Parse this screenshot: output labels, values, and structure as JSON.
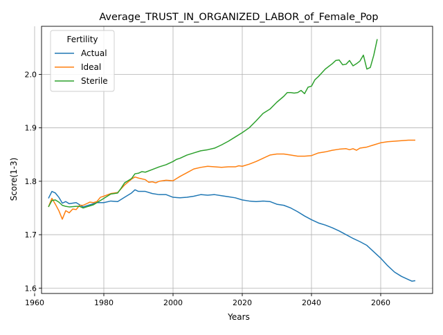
{
  "chart_data": {
    "type": "line",
    "title": "Average_TRUST_IN_ORGANIZED_LABOR_of_Female_Pop",
    "xlabel": "Years",
    "ylabel": "Score(1-3)",
    "xlim": [
      1962,
      2075
    ],
    "ylim": [
      1.59,
      2.09
    ],
    "xticks": [
      1960,
      1980,
      2000,
      2020,
      2040,
      2060
    ],
    "yticks": [
      1.6,
      1.7,
      1.8,
      1.9,
      2.0
    ],
    "ytick_labels": [
      "1.6",
      "1.7",
      "1.8",
      "1.9",
      "2.0"
    ],
    "grid": true,
    "legend": {
      "title": "Fertility",
      "placement": "top-left"
    },
    "series": [
      {
        "name": "Actual",
        "color": "#1f77b4",
        "points": [
          [
            1964,
            1.768
          ],
          [
            1965,
            1.781
          ],
          [
            1966,
            1.778
          ],
          [
            1967,
            1.77
          ],
          [
            1968,
            1.759
          ],
          [
            1969,
            1.762
          ],
          [
            1970,
            1.758
          ],
          [
            1972,
            1.76
          ],
          [
            1974,
            1.752
          ],
          [
            1976,
            1.756
          ],
          [
            1978,
            1.76
          ],
          [
            1980,
            1.76
          ],
          [
            1982,
            1.763
          ],
          [
            1984,
            1.762
          ],
          [
            1986,
            1.77
          ],
          [
            1988,
            1.778
          ],
          [
            1989,
            1.784
          ],
          [
            1990,
            1.781
          ],
          [
            1992,
            1.781
          ],
          [
            1994,
            1.777
          ],
          [
            1996,
            1.775
          ],
          [
            1998,
            1.775
          ],
          [
            2000,
            1.77
          ],
          [
            2002,
            1.769
          ],
          [
            2004,
            1.77
          ],
          [
            2006,
            1.772
          ],
          [
            2008,
            1.775
          ],
          [
            2010,
            1.774
          ],
          [
            2012,
            1.775
          ],
          [
            2014,
            1.773
          ],
          [
            2016,
            1.771
          ],
          [
            2018,
            1.769
          ],
          [
            2020,
            1.765
          ],
          [
            2022,
            1.763
          ],
          [
            2024,
            1.762
          ],
          [
            2026,
            1.763
          ],
          [
            2028,
            1.762
          ],
          [
            2030,
            1.757
          ],
          [
            2032,
            1.755
          ],
          [
            2034,
            1.75
          ],
          [
            2036,
            1.743
          ],
          [
            2038,
            1.735
          ],
          [
            2040,
            1.728
          ],
          [
            2042,
            1.722
          ],
          [
            2044,
            1.718
          ],
          [
            2046,
            1.713
          ],
          [
            2048,
            1.707
          ],
          [
            2050,
            1.7
          ],
          [
            2052,
            1.693
          ],
          [
            2054,
            1.687
          ],
          [
            2056,
            1.68
          ],
          [
            2058,
            1.668
          ],
          [
            2060,
            1.656
          ],
          [
            2062,
            1.642
          ],
          [
            2064,
            1.63
          ],
          [
            2066,
            1.622
          ],
          [
            2068,
            1.616
          ],
          [
            2069,
            1.613
          ],
          [
            2070,
            1.614
          ]
        ]
      },
      {
        "name": "Ideal",
        "color": "#ff7f0e",
        "points": [
          [
            1964,
            1.752
          ],
          [
            1965,
            1.768
          ],
          [
            1966,
            1.757
          ],
          [
            1967,
            1.745
          ],
          [
            1968,
            1.729
          ],
          [
            1969,
            1.745
          ],
          [
            1970,
            1.741
          ],
          [
            1971,
            1.748
          ],
          [
            1972,
            1.747
          ],
          [
            1973,
            1.755
          ],
          [
            1974,
            1.755
          ],
          [
            1976,
            1.761
          ],
          [
            1977,
            1.76
          ],
          [
            1978,
            1.762
          ],
          [
            1979,
            1.77
          ],
          [
            1980,
            1.772
          ],
          [
            1982,
            1.777
          ],
          [
            1984,
            1.779
          ],
          [
            1986,
            1.793
          ],
          [
            1988,
            1.804
          ],
          [
            1989,
            1.808
          ],
          [
            1990,
            1.806
          ],
          [
            1992,
            1.803
          ],
          [
            1993,
            1.798
          ],
          [
            1994,
            1.799
          ],
          [
            1995,
            1.797
          ],
          [
            1996,
            1.8
          ],
          [
            1998,
            1.802
          ],
          [
            2000,
            1.801
          ],
          [
            2001,
            1.805
          ],
          [
            2002,
            1.809
          ],
          [
            2004,
            1.816
          ],
          [
            2006,
            1.823
          ],
          [
            2008,
            1.826
          ],
          [
            2010,
            1.828
          ],
          [
            2012,
            1.827
          ],
          [
            2014,
            1.826
          ],
          [
            2016,
            1.827
          ],
          [
            2018,
            1.827
          ],
          [
            2019,
            1.829
          ],
          [
            2020,
            1.828
          ],
          [
            2022,
            1.832
          ],
          [
            2024,
            1.837
          ],
          [
            2026,
            1.843
          ],
          [
            2028,
            1.849
          ],
          [
            2030,
            1.851
          ],
          [
            2032,
            1.851
          ],
          [
            2034,
            1.849
          ],
          [
            2036,
            1.847
          ],
          [
            2038,
            1.847
          ],
          [
            2040,
            1.848
          ],
          [
            2042,
            1.853
          ],
          [
            2044,
            1.855
          ],
          [
            2046,
            1.858
          ],
          [
            2048,
            1.86
          ],
          [
            2050,
            1.861
          ],
          [
            2051,
            1.859
          ],
          [
            2052,
            1.861
          ],
          [
            2053,
            1.858
          ],
          [
            2054,
            1.862
          ],
          [
            2056,
            1.864
          ],
          [
            2058,
            1.868
          ],
          [
            2060,
            1.872
          ],
          [
            2062,
            1.874
          ],
          [
            2064,
            1.875
          ],
          [
            2066,
            1.876
          ],
          [
            2068,
            1.877
          ],
          [
            2070,
            1.877
          ]
        ]
      },
      {
        "name": "Sterile",
        "color": "#2ca02c",
        "points": [
          [
            1964,
            1.752
          ],
          [
            1965,
            1.764
          ],
          [
            1966,
            1.765
          ],
          [
            1967,
            1.761
          ],
          [
            1968,
            1.755
          ],
          [
            1969,
            1.753
          ],
          [
            1970,
            1.752
          ],
          [
            1972,
            1.753
          ],
          [
            1973,
            1.753
          ],
          [
            1974,
            1.75
          ],
          [
            1976,
            1.754
          ],
          [
            1977,
            1.756
          ],
          [
            1978,
            1.76
          ],
          [
            1980,
            1.768
          ],
          [
            1982,
            1.776
          ],
          [
            1984,
            1.778
          ],
          [
            1985,
            1.787
          ],
          [
            1986,
            1.797
          ],
          [
            1988,
            1.805
          ],
          [
            1989,
            1.814
          ],
          [
            1990,
            1.815
          ],
          [
            1991,
            1.818
          ],
          [
            1992,
            1.817
          ],
          [
            1994,
            1.822
          ],
          [
            1996,
            1.827
          ],
          [
            1998,
            1.831
          ],
          [
            2000,
            1.837
          ],
          [
            2001,
            1.841
          ],
          [
            2002,
            1.843
          ],
          [
            2004,
            1.849
          ],
          [
            2006,
            1.853
          ],
          [
            2008,
            1.857
          ],
          [
            2010,
            1.859
          ],
          [
            2012,
            1.862
          ],
          [
            2014,
            1.868
          ],
          [
            2016,
            1.875
          ],
          [
            2018,
            1.883
          ],
          [
            2020,
            1.891
          ],
          [
            2022,
            1.9
          ],
          [
            2024,
            1.913
          ],
          [
            2026,
            1.927
          ],
          [
            2028,
            1.935
          ],
          [
            2030,
            1.948
          ],
          [
            2032,
            1.959
          ],
          [
            2033,
            1.966
          ],
          [
            2034,
            1.966
          ],
          [
            2035,
            1.965
          ],
          [
            2036,
            1.966
          ],
          [
            2037,
            1.97
          ],
          [
            2038,
            1.964
          ],
          [
            2039,
            1.976
          ],
          [
            2040,
            1.978
          ],
          [
            2041,
            1.99
          ],
          [
            2042,
            1.996
          ],
          [
            2044,
            2.01
          ],
          [
            2046,
            2.02
          ],
          [
            2047,
            2.026
          ],
          [
            2048,
            2.027
          ],
          [
            2049,
            2.018
          ],
          [
            2050,
            2.019
          ],
          [
            2051,
            2.026
          ],
          [
            2052,
            2.016
          ],
          [
            2053,
            2.02
          ],
          [
            2054,
            2.025
          ],
          [
            2055,
            2.036
          ],
          [
            2056,
            2.01
          ],
          [
            2057,
            2.013
          ],
          [
            2058,
            2.036
          ],
          [
            2059,
            2.066
          ]
        ]
      }
    ]
  }
}
